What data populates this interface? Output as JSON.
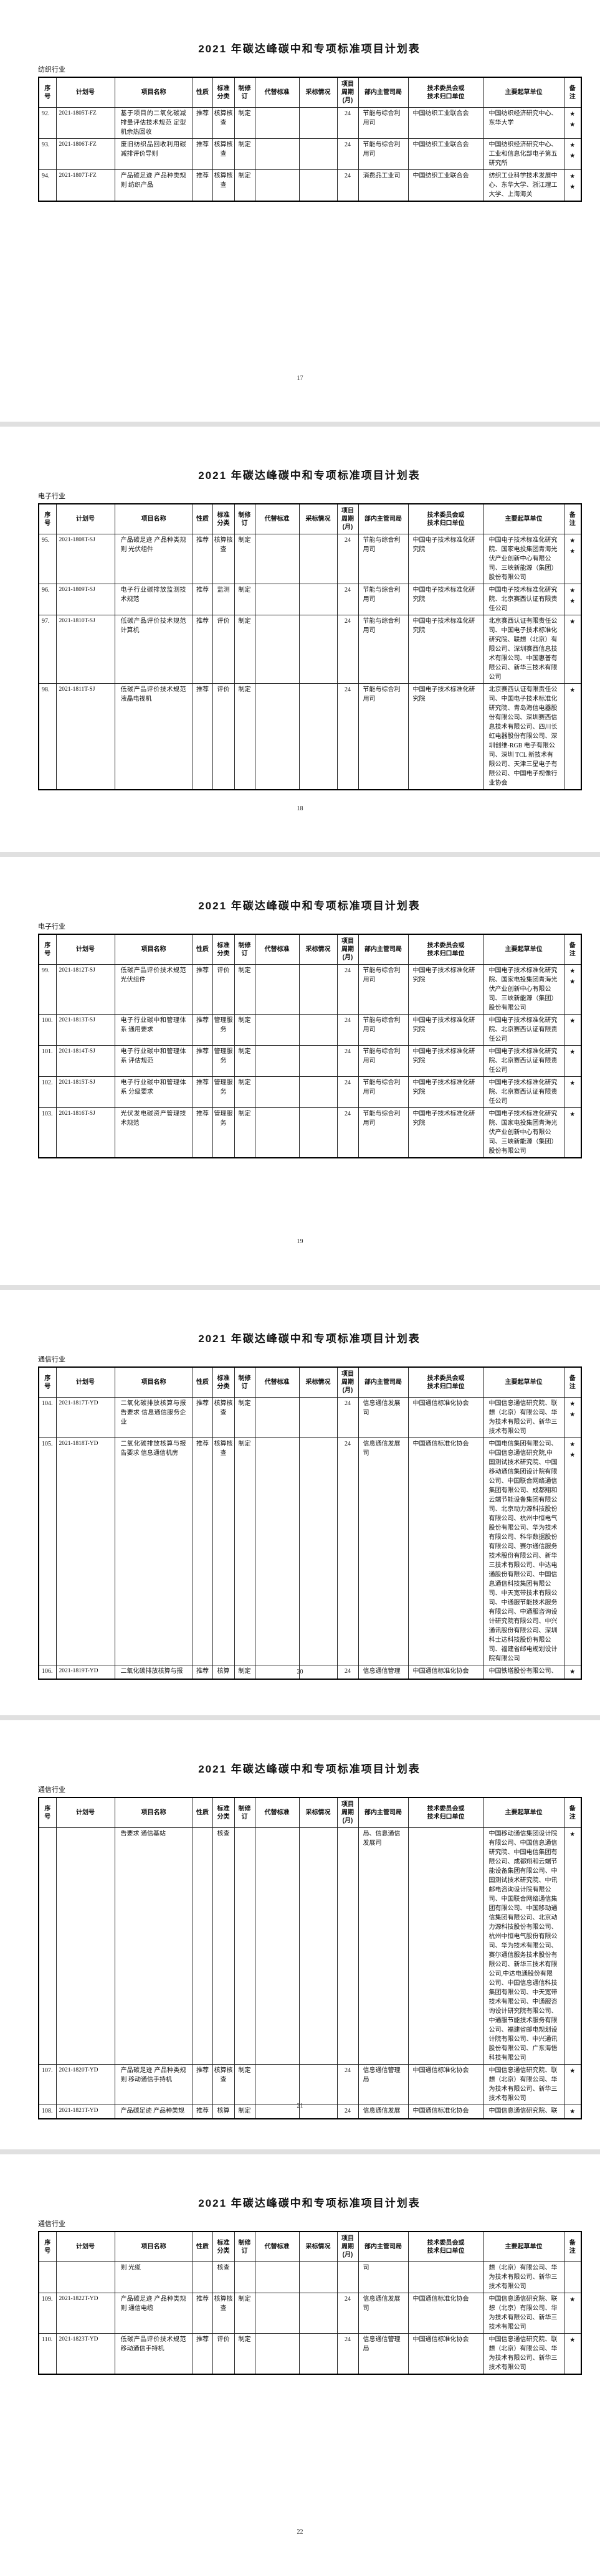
{
  "document": {
    "title": "2021 年碳达峰碳中和专项标准项目计划表",
    "columns": [
      "序\n号",
      "计划号",
      "项目名称",
      "性质",
      "标准\n分类",
      "制修\n订",
      "代替标准",
      "采标情况",
      "项目\n周期\n(月)",
      "部内主管司局",
      "技术委员会或\n技术归口单位",
      "主要起草单位",
      "备\n注"
    ],
    "pages": [
      {
        "section": "纺织行业",
        "page_number": "17",
        "rows": [
          [
            "92.",
            "2021-1805T-FZ",
            "基于项目的二氧化碳减排量评估技术规范 定型机余热回收",
            "推荐",
            "核算核查",
            "制定",
            "",
            "",
            "24",
            "节能与综合利用司",
            "中国纺织工业联合会",
            "中国纺织经济研究中心、东华大学",
            "★★"
          ],
          [
            "93.",
            "2021-1806T-FZ",
            "废旧纺织品回收利用碳减排评价导则",
            "推荐",
            "核算核查",
            "制定",
            "",
            "",
            "24",
            "节能与综合利用司",
            "中国纺织工业联合会",
            "中国纺织经济研究中心、工业和信息化部电子第五研究所",
            "★★"
          ],
          [
            "94.",
            "2021-1807T-FZ",
            "产品碳足迹 产品种类规则 纺织产品",
            "推荐",
            "核算核查",
            "制定",
            "",
            "",
            "24",
            "消费品工业司",
            "中国纺织工业联合会",
            "纺织工业科学技术发展中心、东华大学、浙江理工大学、上海海关",
            "★★"
          ]
        ]
      },
      {
        "section": "电子行业",
        "page_number": "18",
        "rows": [
          [
            "95.",
            "2021-1808T-SJ",
            "产品碳足迹 产品种类规则 光伏组件",
            "推荐",
            "核算核查",
            "制定",
            "",
            "",
            "24",
            "节能与综合利用司",
            "中国电子技术标准化研究院",
            "中国电子技术标准化研究院、国家电投集团青海光伏产业创新中心有限公司、三峡新能源（集团）股份有限公司",
            "★★"
          ],
          [
            "96.",
            "2021-1809T-SJ",
            "电子行业碳排放监测技术规范",
            "推荐",
            "监测",
            "制定",
            "",
            "",
            "24",
            "节能与综合利用司",
            "中国电子技术标准化研究院",
            "中国电子技术标准化研究院、北京赛西认证有限责任公司",
            "★★"
          ],
          [
            "97.",
            "2021-1810T-SJ",
            "低碳产品评价技术规范 计算机",
            "推荐",
            "评价",
            "制定",
            "",
            "",
            "24",
            "节能与综合利用司",
            "中国电子技术标准化研究院",
            "北京赛西认证有限责任公司、中国电子技术标准化研究院、联想（北京）有限公司、深圳赛西信息技术有限公司、中国惠普有限公司、新华三技术有限公司",
            "★"
          ],
          [
            "98.",
            "2021-1811T-SJ",
            "低碳产品评价技术规范 液晶电视机",
            "推荐",
            "评价",
            "制定",
            "",
            "",
            "24",
            "节能与综合利用司",
            "中国电子技术标准化研究院",
            "北京赛西认证有限责任公司、中国电子技术标准化研究院、青岛海信电器股份有限公司、深圳赛西信息技术有限公司、四川长虹电器股份有限公司、深圳创维-RGB 电子有限公司、深圳 TCL 新技术有限公司、天津三星电子有限公司、中国电子视像行业协会",
            "★"
          ]
        ]
      },
      {
        "section": "电子行业",
        "page_number": "19",
        "rows": [
          [
            "99.",
            "2021-1812T-SJ",
            "低碳产品评价技术规范 光伏组件",
            "推荐",
            "评价",
            "制定",
            "",
            "",
            "24",
            "节能与综合利用司",
            "中国电子技术标准化研究院",
            "中国电子技术标准化研究院、国家电投集团青海光伏产业创新中心有限公司、三峡新能源（集团）股份有限公司",
            "★★"
          ],
          [
            "100.",
            "2021-1813T-SJ",
            "电子行业碳中和管理体系 通用要求",
            "推荐",
            "管理服务",
            "制定",
            "",
            "",
            "24",
            "节能与综合利用司",
            "中国电子技术标准化研究院",
            "中国电子技术标准化研究院、北京赛西认证有限责任公司",
            "★"
          ],
          [
            "101.",
            "2021-1814T-SJ",
            "电子行业碳中和管理体系 评估规范",
            "推荐",
            "管理服务",
            "制定",
            "",
            "",
            "24",
            "节能与综合利用司",
            "中国电子技术标准化研究院",
            "中国电子技术标准化研究院、北京赛西认证有限责任公司",
            "★"
          ],
          [
            "102.",
            "2021-1815T-SJ",
            "电子行业碳中和管理体系 分级要求",
            "推荐",
            "管理服务",
            "制定",
            "",
            "",
            "24",
            "节能与综合利用司",
            "中国电子技术标准化研究院",
            "中国电子技术标准化研究院、北京赛西认证有限责任公司",
            "★"
          ],
          [
            "103.",
            "2021-1816T-SJ",
            "光伏发电碳资产管理技术规范",
            "推荐",
            "管理服务",
            "制定",
            "",
            "",
            "24",
            "节能与综合利用司",
            "中国电子技术标准化研究院",
            "中国电子技术标准化研究院、国家电投集团青海光伏产业创新中心有限公司、三峡新能源（集团）股份有限公司",
            "★"
          ]
        ]
      },
      {
        "section": "通信行业",
        "page_number": "20",
        "rows": [
          [
            "104.",
            "2021-1817T-YD",
            "二氧化碳排放核算与报告要求 信息通信服务企业",
            "推荐",
            "核算核查",
            "制定",
            "",
            "",
            "24",
            "信息通信发展司",
            "中国通信标准化协会",
            "中国信息通信研究院、联想（北京）有限公司、华为技术有限公司、新华三技术有限公司",
            "★★"
          ],
          [
            "105.",
            "2021-1818T-YD",
            "二氧化碳排放核算与报告要求 信息通信机房",
            "推荐",
            "核算核查",
            "制定",
            "",
            "",
            "24",
            "信息通信发展司",
            "中国通信标准化协会",
            "中国电信集团有限公司、中国信息通信研究院,中国测试技术研究院、中国移动通信集团设计院有限公司、中国联合网络通信集团有限公司、成都翔和云端节能设备集团有限公司、北京动力源科技股份有限公司、杭州中恒电气股份有限公司、华为技术有限公司、科华数据股份有限公司、赛尔通信服务技术股份有限公司、新华三技术有限公司、中达电通股份有限公司、中国信息通信科技集团有限公司、中天宽带技术有限公司、中通服节能技术服务有限公司、中通服咨询设计研究院有限公司、中兴通讯股份有限公司、深圳科士达科技股份有限公司、福建省邮电规划设计院有限公司",
            "★★"
          ],
          [
            "106.",
            "2021-1819T-YD",
            "二氧化碳排放核算与报",
            "推荐",
            "核算",
            "制定",
            "",
            "",
            "24",
            "信息通信管理",
            "中国通信标准化协会",
            "中国铁塔股份有限公司、",
            "★"
          ]
        ]
      },
      {
        "section": "通信行业",
        "page_number": "21",
        "rows": [
          [
            "",
            "",
            "告要求 通信基站",
            "",
            "核查",
            "",
            "",
            "",
            "",
            "局、信息通信发展司",
            "",
            "中国移动通信集团设计院有限公司、中国信息通信研究院、中国电信集团有限公司、成都翔和云端节能设备集团有限公司、中国测试技术研究院、中讯邮电咨询设计院有限公司、中国联合网络通信集团有限公司、中国移动通信集团有限公司、北京动力源科技股份有限公司、杭州中恒电气股份有限公司、华为技术有限公司、赛尔通信服务技术股份有限公司、新华三技术有限公司,中达电通股份有限公司、中国信息通信科技集团有限公司、中天宽带技术有限公司、中通服咨询设计研究院有限公司、中通服节能技术服务有限公司、福建省邮电规划设计院有限公司、中兴通讯股份有限公司、广东海悟科技有限公司",
            "★"
          ],
          [
            "107.",
            "2021-1820T-YD",
            "产品碳足迹 产品种类规则 移动通信手持机",
            "推荐",
            "核算核查",
            "制定",
            "",
            "",
            "24",
            "信息通信管理局",
            "中国通信标准化协会",
            "中国信息通信研究院、联想（北京）有限公司、华为技术有限公司、新华三技术有限公司",
            "★"
          ],
          [
            "108.",
            "2021-1821T-YD",
            "产品碳足迹 产品种类规",
            "推荐",
            "核算",
            "制定",
            "",
            "",
            "24",
            "信息通信发展",
            "中国通信标准化协会",
            "中国信息通信研究院、联",
            "★"
          ]
        ]
      },
      {
        "section": "通信行业",
        "page_number": "22",
        "rows": [
          [
            "",
            "",
            "则 光缆",
            "",
            "核查",
            "",
            "",
            "",
            "",
            "司",
            "",
            "想（北京）有限公司、华为技术有限公司、新华三技术有限公司",
            ""
          ],
          [
            "109.",
            "2021-1822T-YD",
            "产品碳足迹 产品种类规则 通信电缆",
            "推荐",
            "核算核查",
            "制定",
            "",
            "",
            "24",
            "信息通信发展司",
            "中国通信标准化协会",
            "中国信息通信研究院、联想（北京）有限公司、华为技术有限公司、新华三技术有限公司",
            "★"
          ],
          [
            "110.",
            "2021-1823T-YD",
            "低碳产品评价技术规范 移动通信手持机",
            "推荐",
            "评价",
            "制定",
            "",
            "",
            "24",
            "信息通信管理局",
            "中国通信标准化协会",
            "中国信息通信研究院、联想（北京）有限公司、华为技术有限公司、新华三技术有限公司",
            "★"
          ]
        ]
      }
    ]
  }
}
